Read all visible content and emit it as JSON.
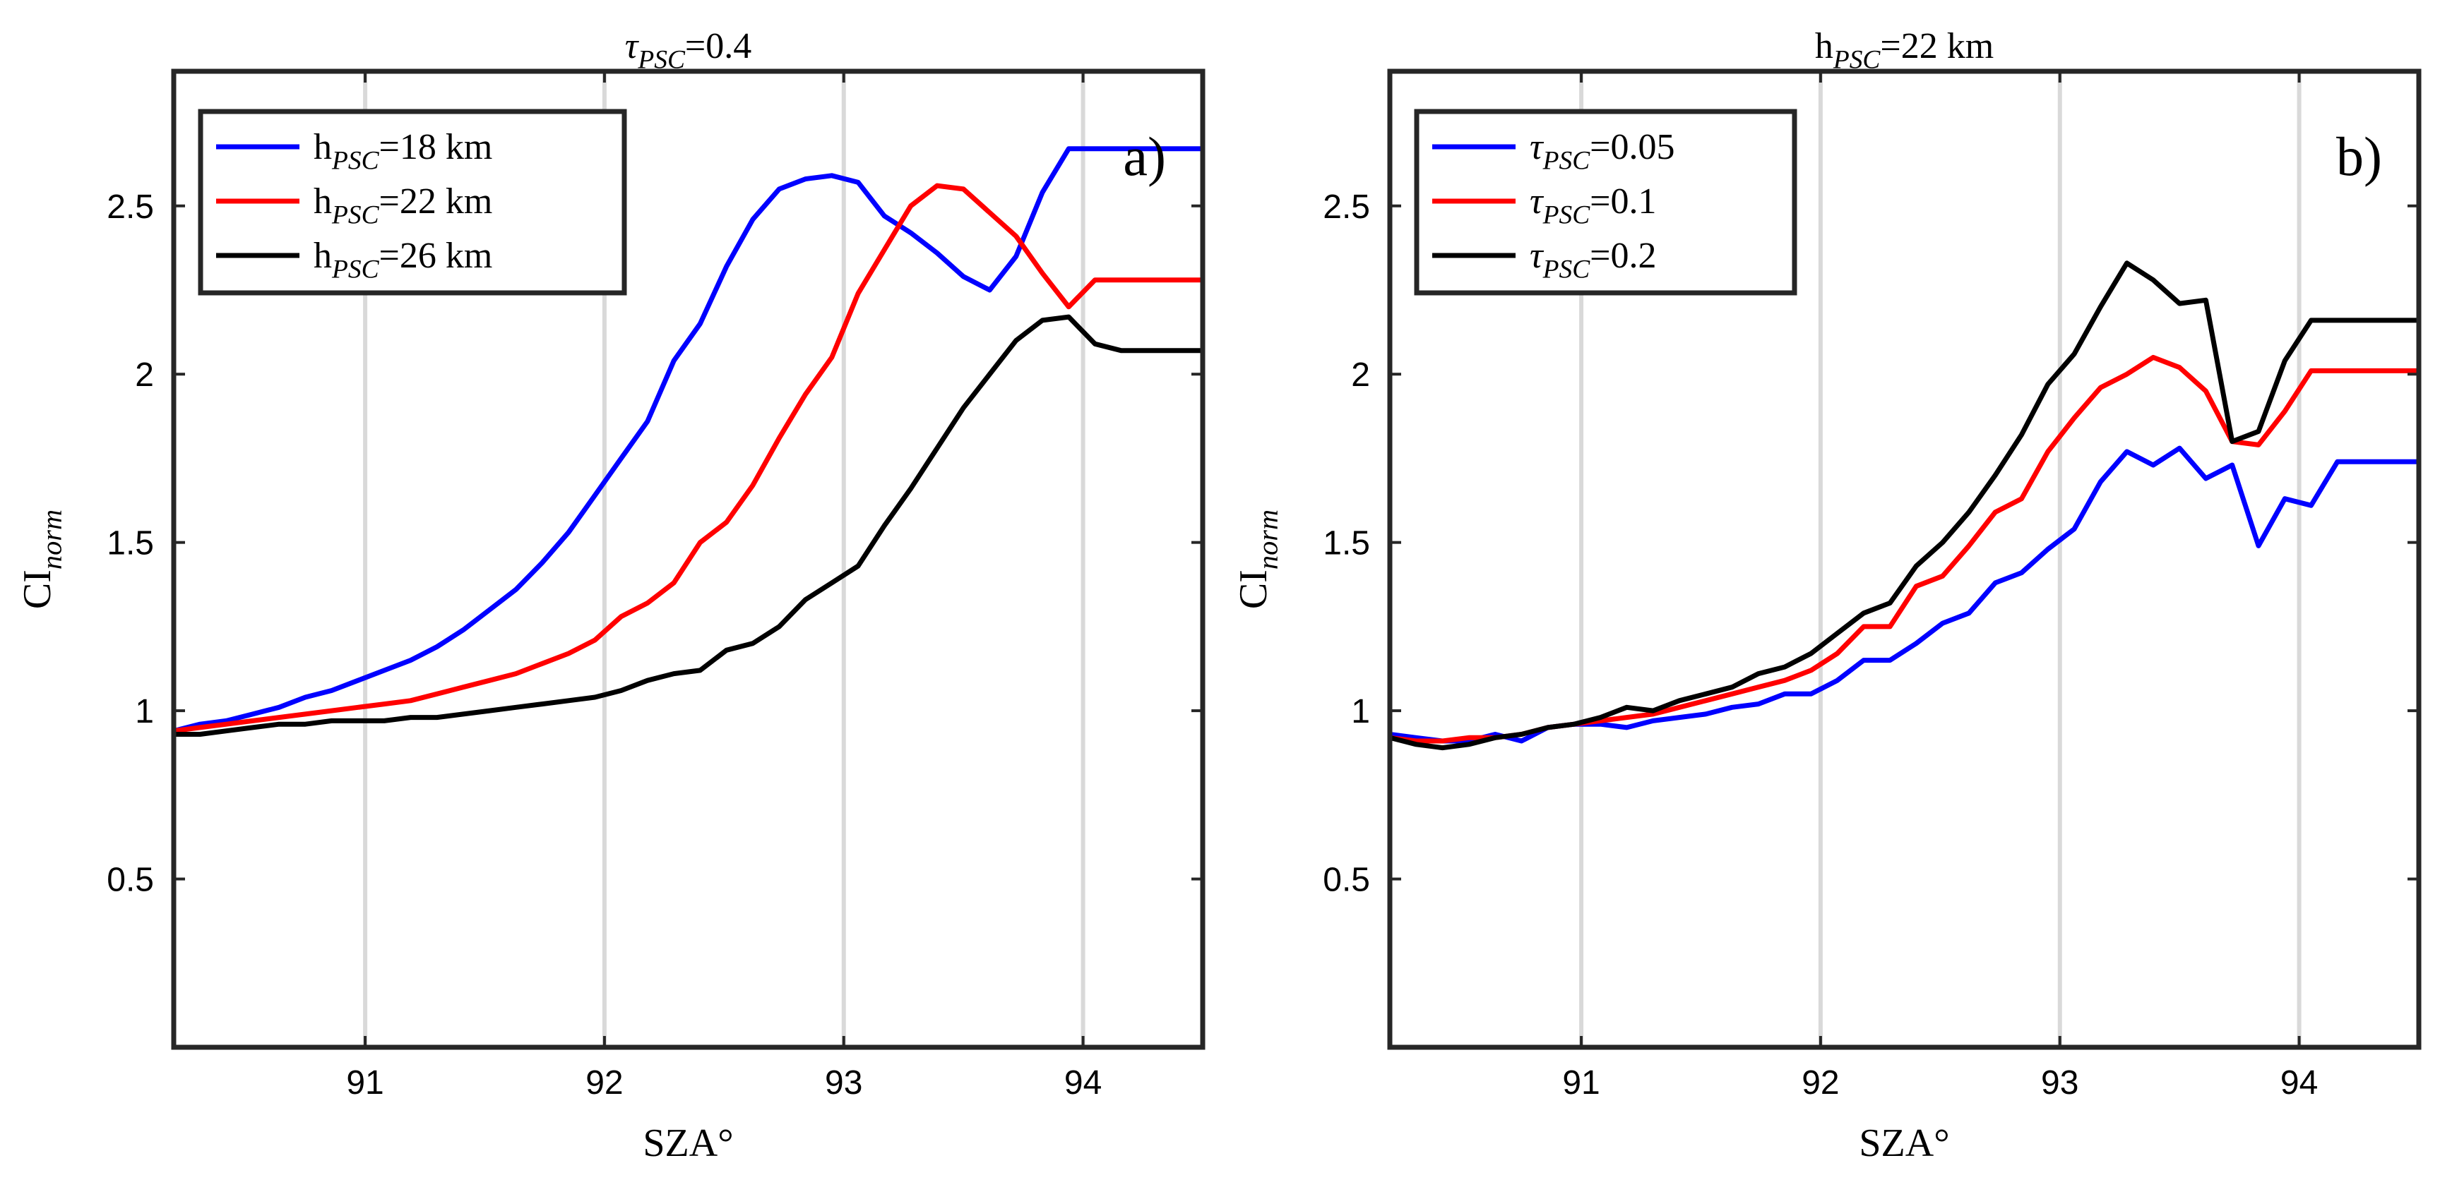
{
  "chart_data": [
    {
      "type": "line",
      "panel": "a",
      "panel_label": "a)",
      "title": {
        "base": "τ",
        "sub": "PSC",
        "tail": "=0.4"
      },
      "xlabel": "SZA°",
      "ylabel": {
        "base": "CI",
        "sub": "norm"
      },
      "xlim": [
        90.2,
        94.5
      ],
      "ylim": [
        0,
        2.9
      ],
      "xticks": [
        91,
        92,
        93,
        94
      ],
      "xtick_labels": [
        "91",
        "92",
        "93",
        "94"
      ],
      "yticks": [
        0.5,
        1,
        1.5,
        2,
        2.5
      ],
      "ytick_labels": [
        "0.5",
        "1",
        "1.5",
        "2",
        "2.5"
      ],
      "grid": "x",
      "legend_position": "top-left",
      "series": [
        {
          "name": "h_PSC=18 km",
          "legend": {
            "base": "h",
            "sub": "PSC",
            "tail": "=18 km"
          },
          "color": "#0000ff",
          "x": [
            90.2,
            90.31,
            90.42,
            90.53,
            90.64,
            90.75,
            90.86,
            90.97,
            91.08,
            91.19,
            91.3,
            91.41,
            91.52,
            91.63,
            91.74,
            91.85,
            91.96,
            92.07,
            92.18,
            92.29,
            92.4,
            92.51,
            92.62,
            92.73,
            92.84,
            92.95,
            93.06,
            93.17,
            93.28,
            93.39,
            93.5,
            93.61,
            93.72,
            93.83,
            93.94,
            94.05,
            94.16,
            94.27,
            94.38,
            94.5
          ],
          "y": [
            0.94,
            0.96,
            0.97,
            0.99,
            1.01,
            1.04,
            1.06,
            1.09,
            1.12,
            1.15,
            1.19,
            1.24,
            1.3,
            1.36,
            1.44,
            1.53,
            1.64,
            1.75,
            1.86,
            2.04,
            2.15,
            2.32,
            2.46,
            2.55,
            2.58,
            2.59,
            2.57,
            2.47,
            2.42,
            2.36,
            2.29,
            2.25,
            2.35,
            2.54,
            2.67,
            2.67,
            2.67,
            2.67,
            2.67,
            2.67
          ]
        },
        {
          "name": "h_PSC=22 km",
          "legend": {
            "base": "h",
            "sub": "PSC",
            "tail": "=22 km"
          },
          "color": "#ff0000",
          "x": [
            90.2,
            90.31,
            90.42,
            90.53,
            90.64,
            90.75,
            90.86,
            90.97,
            91.08,
            91.19,
            91.3,
            91.41,
            91.52,
            91.63,
            91.74,
            91.85,
            91.96,
            92.07,
            92.18,
            92.29,
            92.4,
            92.51,
            92.62,
            92.73,
            92.84,
            92.95,
            93.06,
            93.17,
            93.28,
            93.39,
            93.5,
            93.61,
            93.72,
            93.83,
            93.94,
            94.05,
            94.16,
            94.27,
            94.38,
            94.5
          ],
          "y": [
            0.94,
            0.95,
            0.96,
            0.97,
            0.98,
            0.99,
            1.0,
            1.01,
            1.02,
            1.03,
            1.05,
            1.07,
            1.09,
            1.11,
            1.14,
            1.17,
            1.21,
            1.28,
            1.32,
            1.38,
            1.5,
            1.56,
            1.67,
            1.81,
            1.94,
            2.05,
            2.24,
            2.37,
            2.5,
            2.56,
            2.55,
            2.48,
            2.41,
            2.3,
            2.2,
            2.28,
            2.28,
            2.28,
            2.28,
            2.28
          ]
        },
        {
          "name": "h_PSC=26 km",
          "legend": {
            "base": "h",
            "sub": "PSC",
            "tail": "=26 km"
          },
          "color": "#000000",
          "x": [
            90.2,
            90.31,
            90.42,
            90.53,
            90.64,
            90.75,
            90.86,
            90.97,
            91.08,
            91.19,
            91.3,
            91.41,
            91.52,
            91.63,
            91.74,
            91.85,
            91.96,
            92.07,
            92.18,
            92.29,
            92.4,
            92.51,
            92.62,
            92.73,
            92.84,
            92.95,
            93.06,
            93.17,
            93.28,
            93.39,
            93.5,
            93.61,
            93.72,
            93.83,
            93.94,
            94.05,
            94.16,
            94.27,
            94.38,
            94.5
          ],
          "y": [
            0.93,
            0.93,
            0.94,
            0.95,
            0.96,
            0.96,
            0.97,
            0.97,
            0.97,
            0.98,
            0.98,
            0.99,
            1.0,
            1.01,
            1.02,
            1.03,
            1.04,
            1.06,
            1.09,
            1.11,
            1.12,
            1.18,
            1.2,
            1.25,
            1.33,
            1.38,
            1.43,
            1.55,
            1.66,
            1.78,
            1.9,
            2.0,
            2.1,
            2.16,
            2.17,
            2.09,
            2.07,
            2.07,
            2.07,
            2.07
          ]
        }
      ]
    },
    {
      "type": "line",
      "panel": "b",
      "panel_label": "b)",
      "title": {
        "base": "h",
        "sub": "PSC",
        "tail": "=22 km"
      },
      "xlabel": "SZA°",
      "ylabel": {
        "base": "CI",
        "sub": "norm"
      },
      "xlim": [
        90.2,
        94.5
      ],
      "ylim": [
        0,
        2.9
      ],
      "xticks": [
        91,
        92,
        93,
        94
      ],
      "xtick_labels": [
        "91",
        "92",
        "93",
        "94"
      ],
      "yticks": [
        0.5,
        1,
        1.5,
        2,
        2.5
      ],
      "ytick_labels": [
        "0.5",
        "1",
        "1.5",
        "2",
        "2.5"
      ],
      "grid": "x",
      "legend_position": "top-left",
      "series": [
        {
          "name": "τ_PSC=0.05",
          "legend": {
            "base": "τ",
            "sub": "PSC",
            "tail": "=0.05"
          },
          "color": "#0000ff",
          "x": [
            90.2,
            90.31,
            90.42,
            90.53,
            90.64,
            90.75,
            90.86,
            90.97,
            91.08,
            91.19,
            91.3,
            91.41,
            91.52,
            91.63,
            91.74,
            91.85,
            91.96,
            92.07,
            92.18,
            92.29,
            92.4,
            92.51,
            92.62,
            92.73,
            92.84,
            92.95,
            93.06,
            93.17,
            93.28,
            93.39,
            93.5,
            93.61,
            93.72,
            93.83,
            93.94,
            94.05,
            94.16,
            94.27,
            94.38,
            94.5
          ],
          "y": [
            0.93,
            0.92,
            0.91,
            0.91,
            0.93,
            0.91,
            0.95,
            0.96,
            0.96,
            0.95,
            0.97,
            0.98,
            0.99,
            1.01,
            1.02,
            1.05,
            1.05,
            1.09,
            1.15,
            1.15,
            1.2,
            1.26,
            1.29,
            1.38,
            1.41,
            1.48,
            1.54,
            1.68,
            1.77,
            1.73,
            1.78,
            1.69,
            1.73,
            1.49,
            1.63,
            1.61,
            1.74,
            1.74,
            1.74,
            1.74
          ]
        },
        {
          "name": "τ_PSC=0.1",
          "legend": {
            "base": "τ",
            "sub": "PSC",
            "tail": "=0.1"
          },
          "color": "#ff0000",
          "x": [
            90.2,
            90.31,
            90.42,
            90.53,
            90.64,
            90.75,
            90.86,
            90.97,
            91.08,
            91.19,
            91.3,
            91.41,
            91.52,
            91.63,
            91.74,
            91.85,
            91.96,
            92.07,
            92.18,
            92.29,
            92.4,
            92.51,
            92.62,
            92.73,
            92.84,
            92.95,
            93.06,
            93.17,
            93.28,
            93.39,
            93.5,
            93.61,
            93.72,
            93.83,
            93.94,
            94.05,
            94.16,
            94.27,
            94.38,
            94.5
          ],
          "y": [
            0.92,
            0.91,
            0.91,
            0.92,
            0.92,
            0.93,
            0.95,
            0.96,
            0.97,
            0.98,
            0.99,
            1.01,
            1.03,
            1.05,
            1.07,
            1.09,
            1.12,
            1.17,
            1.25,
            1.25,
            1.37,
            1.4,
            1.49,
            1.59,
            1.63,
            1.77,
            1.87,
            1.96,
            2.0,
            2.05,
            2.02,
            1.95,
            1.8,
            1.79,
            1.89,
            2.01,
            2.01,
            2.01,
            2.01,
            2.01
          ]
        },
        {
          "name": "τ_PSC=0.2",
          "legend": {
            "base": "τ",
            "sub": "PSC",
            "tail": "=0.2"
          },
          "color": "#000000",
          "x": [
            90.2,
            90.31,
            90.42,
            90.53,
            90.64,
            90.75,
            90.86,
            90.97,
            91.08,
            91.19,
            91.3,
            91.41,
            91.52,
            91.63,
            91.74,
            91.85,
            91.96,
            92.07,
            92.18,
            92.29,
            92.4,
            92.51,
            92.62,
            92.73,
            92.84,
            92.95,
            93.06,
            93.17,
            93.28,
            93.39,
            93.5,
            93.61,
            93.72,
            93.83,
            93.94,
            94.05,
            94.16,
            94.27,
            94.38,
            94.5
          ],
          "y": [
            0.92,
            0.9,
            0.89,
            0.9,
            0.92,
            0.93,
            0.95,
            0.96,
            0.98,
            1.01,
            1.0,
            1.03,
            1.05,
            1.07,
            1.11,
            1.13,
            1.17,
            1.23,
            1.29,
            1.32,
            1.43,
            1.5,
            1.59,
            1.7,
            1.82,
            1.97,
            2.06,
            2.2,
            2.33,
            2.28,
            2.21,
            2.22,
            1.8,
            1.83,
            2.04,
            2.16,
            2.16,
            2.16,
            2.16,
            2.16
          ]
        }
      ]
    }
  ]
}
